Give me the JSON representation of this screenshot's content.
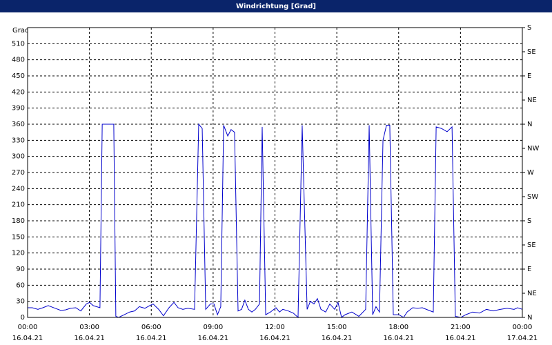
{
  "chart_data": {
    "type": "line",
    "title": "Windrichtung [Grad]",
    "y_label": "Grad",
    "color": "#0000cc",
    "grid": true,
    "x": [
      0,
      0.23,
      0.5,
      0.74,
      1.0,
      1.34,
      1.61,
      1.84,
      2.08,
      2.34,
      2.58,
      2.85,
      3.01,
      3.18,
      3.51,
      3.62,
      4.18,
      4.28,
      4.42,
      4.69,
      4.95,
      5.19,
      5.42,
      5.69,
      5.92,
      6.09,
      6.36,
      6.59,
      6.86,
      7.1,
      7.3,
      7.53,
      7.77,
      8.1,
      8.3,
      8.47,
      8.64,
      8.87,
      9.04,
      9.21,
      9.37,
      9.51,
      9.71,
      9.87,
      10.04,
      10.21,
      10.38,
      10.54,
      10.71,
      10.88,
      11.05,
      11.25,
      11.38,
      11.55,
      11.78,
      12.05,
      12.22,
      12.38,
      12.65,
      12.89,
      13.12,
      13.32,
      13.56,
      13.72,
      13.89,
      14.06,
      14.23,
      14.46,
      14.66,
      14.9,
      15.06,
      15.23,
      15.4,
      15.73,
      16.07,
      16.4,
      16.57,
      16.74,
      16.9,
      17.07,
      17.24,
      17.41,
      17.57,
      17.74,
      18.01,
      18.24,
      18.41,
      18.68,
      18.91,
      19.15,
      19.41,
      19.68,
      19.82,
      20.08,
      20.35,
      20.59,
      20.75,
      21.02,
      21.26,
      21.59,
      21.92,
      22.26,
      22.59,
      22.93,
      23.26,
      23.6,
      23.77,
      24.0
    ],
    "values": [
      18,
      18,
      15,
      18,
      22,
      17,
      13,
      14,
      17,
      18,
      12,
      25,
      28,
      22,
      18,
      360,
      360,
      2,
      0,
      5,
      10,
      12,
      20,
      17,
      22,
      25,
      15,
      3,
      18,
      28,
      18,
      15,
      17,
      15,
      360,
      352,
      15,
      25,
      25,
      5,
      20,
      358,
      338,
      350,
      345,
      12,
      15,
      32,
      15,
      10,
      15,
      25,
      355,
      5,
      10,
      18,
      10,
      15,
      12,
      8,
      0,
      358,
      15,
      30,
      25,
      35,
      15,
      10,
      25,
      15,
      28,
      0,
      5,
      10,
      2,
      15,
      358,
      5,
      20,
      10,
      330,
      358,
      358,
      5,
      5,
      0,
      10,
      18,
      17,
      18,
      14,
      10,
      355,
      352,
      346,
      355,
      2,
      0,
      5,
      10,
      8,
      15,
      12,
      15,
      17,
      15,
      18,
      15
    ],
    "xlim": [
      0,
      24
    ],
    "xticks": [
      {
        "value": 0,
        "label": "00:00",
        "date": "16.04.21"
      },
      {
        "value": 3,
        "label": "03:00",
        "date": "16.04.21"
      },
      {
        "value": 6,
        "label": "06:00",
        "date": "16.04.21"
      },
      {
        "value": 9,
        "label": "09:00",
        "date": "16.04.21"
      },
      {
        "value": 12,
        "label": "12:00",
        "date": "16.04.21"
      },
      {
        "value": 15,
        "label": "15:00",
        "date": "16.04.21"
      },
      {
        "value": 18,
        "label": "18:00",
        "date": "16.04.21"
      },
      {
        "value": 21,
        "label": "21:00",
        "date": "16.04.21"
      },
      {
        "value": 24,
        "label": "00:00",
        "date": "17.04.21"
      }
    ],
    "ylim": [
      0,
      540
    ],
    "yticks": [
      0,
      30,
      60,
      90,
      120,
      150,
      180,
      210,
      240,
      270,
      300,
      330,
      360,
      390,
      420,
      450,
      480,
      510
    ],
    "y2lim": [
      0,
      540
    ],
    "y2ticks": [
      {
        "value": 0,
        "label": "N"
      },
      {
        "value": 45,
        "label": "NE"
      },
      {
        "value": 90,
        "label": "E"
      },
      {
        "value": 135,
        "label": "SE"
      },
      {
        "value": 180,
        "label": "S"
      },
      {
        "value": 225,
        "label": "SW"
      },
      {
        "value": 270,
        "label": "W"
      },
      {
        "value": 315,
        "label": "NW"
      },
      {
        "value": 360,
        "label": "N"
      },
      {
        "value": 405,
        "label": "NE"
      },
      {
        "value": 450,
        "label": "E"
      },
      {
        "value": 495,
        "label": "SE"
      },
      {
        "value": 540,
        "label": "S"
      }
    ]
  }
}
